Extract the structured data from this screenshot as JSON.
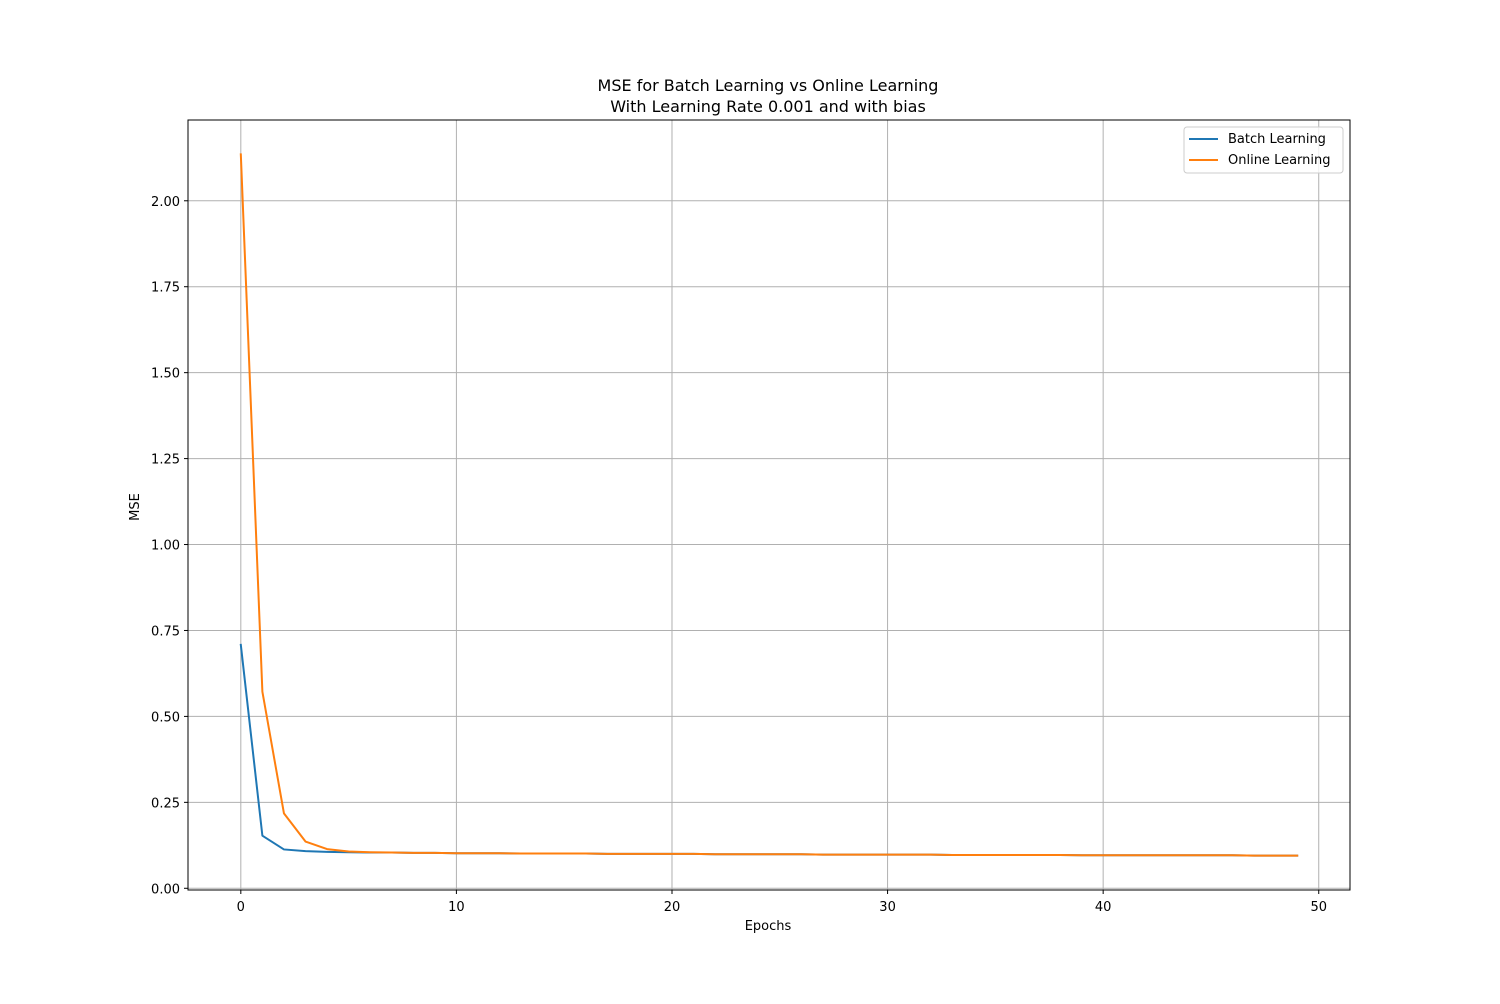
{
  "chart_data": {
    "type": "line",
    "title": "MSE for Batch Learning vs Online Learning",
    "subtitle": "With Learning Rate 0.001 and with bias",
    "xlabel": "Epochs",
    "ylabel": "MSE",
    "xlim": [
      -2.45,
      51.45
    ],
    "ylim": [
      -0.005,
      2.235
    ],
    "xticks": [
      0,
      10,
      20,
      30,
      40,
      50
    ],
    "yticks": [
      0.0,
      0.25,
      0.5,
      0.75,
      1.0,
      1.25,
      1.5,
      1.75,
      2.0
    ],
    "ytick_labels": [
      "0.00",
      "0.25",
      "0.50",
      "0.75",
      "1.00",
      "1.25",
      "1.50",
      "1.75",
      "2.00"
    ],
    "grid": true,
    "legend_position": "top-right",
    "x": [
      0,
      1,
      2,
      3,
      4,
      5,
      6,
      7,
      8,
      9,
      10,
      11,
      12,
      13,
      14,
      15,
      16,
      17,
      18,
      19,
      20,
      21,
      22,
      23,
      24,
      25,
      26,
      27,
      28,
      29,
      30,
      31,
      32,
      33,
      34,
      35,
      36,
      37,
      38,
      39,
      40,
      41,
      42,
      43,
      44,
      45,
      46,
      47,
      48,
      49
    ],
    "series": [
      {
        "name": "Batch Learning",
        "color": "#1f77b4",
        "values": [
          0.708,
          0.153,
          0.113,
          0.108,
          0.106,
          0.105,
          0.104,
          0.104,
          0.103,
          0.103,
          0.102,
          0.102,
          0.102,
          0.101,
          0.101,
          0.101,
          0.101,
          0.1,
          0.1,
          0.1,
          0.1,
          0.1,
          0.099,
          0.099,
          0.099,
          0.099,
          0.099,
          0.098,
          0.098,
          0.098,
          0.098,
          0.098,
          0.098,
          0.097,
          0.097,
          0.097,
          0.097,
          0.097,
          0.097,
          0.096,
          0.096,
          0.096,
          0.096,
          0.096,
          0.096,
          0.096,
          0.096,
          0.095,
          0.095,
          0.095
        ]
      },
      {
        "name": "Online Learning",
        "color": "#ff7f0e",
        "values": [
          2.135,
          0.572,
          0.218,
          0.136,
          0.114,
          0.107,
          0.105,
          0.104,
          0.103,
          0.103,
          0.102,
          0.102,
          0.102,
          0.101,
          0.101,
          0.101,
          0.101,
          0.1,
          0.1,
          0.1,
          0.1,
          0.1,
          0.099,
          0.099,
          0.099,
          0.099,
          0.099,
          0.098,
          0.098,
          0.098,
          0.098,
          0.098,
          0.098,
          0.097,
          0.097,
          0.097,
          0.097,
          0.097,
          0.097,
          0.096,
          0.096,
          0.096,
          0.096,
          0.096,
          0.096,
          0.096,
          0.096,
          0.095,
          0.095,
          0.095
        ]
      }
    ]
  }
}
